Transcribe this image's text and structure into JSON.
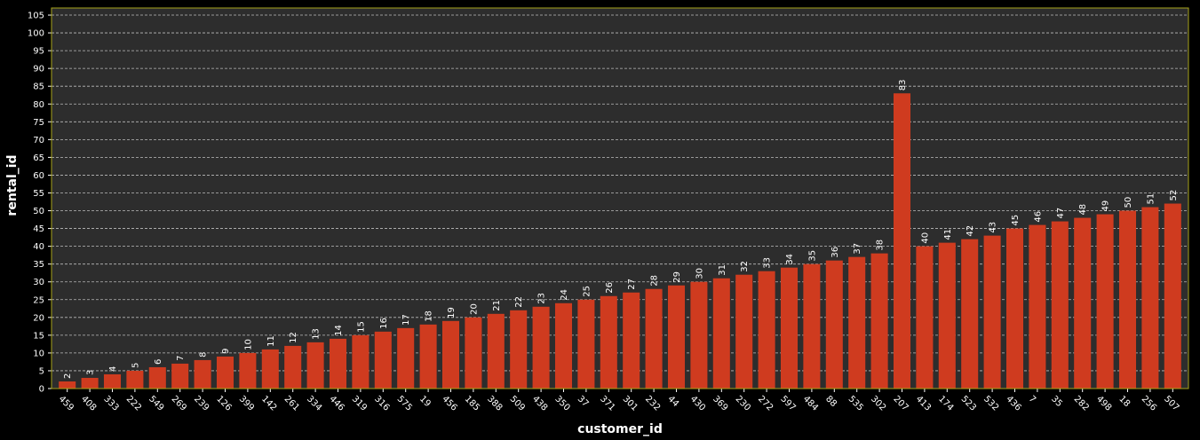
{
  "chart_data": {
    "type": "bar",
    "title": "",
    "xlabel": "customer_id",
    "ylabel": "rental_id",
    "ylim": [
      0,
      107
    ],
    "yticks": [
      0,
      5,
      10,
      15,
      20,
      25,
      30,
      35,
      40,
      45,
      50,
      55,
      60,
      65,
      70,
      75,
      80,
      85,
      90,
      95,
      100,
      105
    ],
    "grid": true,
    "legend": "none",
    "categories": [
      "459",
      "408",
      "333",
      "222",
      "549",
      "269",
      "239",
      "126",
      "399",
      "142",
      "261",
      "334",
      "446",
      "319",
      "316",
      "575",
      "19",
      "456",
      "185",
      "388",
      "509",
      "438",
      "350",
      "37",
      "371",
      "301",
      "232",
      "44",
      "430",
      "369",
      "230",
      "272",
      "597",
      "484",
      "88",
      "535",
      "302",
      "207",
      "413",
      "174",
      "523",
      "532",
      "436",
      "7",
      "35",
      "282",
      "498",
      "18",
      "256",
      "507"
    ],
    "values": [
      2,
      3,
      4,
      5,
      6,
      7,
      8,
      9,
      10,
      11,
      12,
      13,
      14,
      15,
      16,
      17,
      18,
      19,
      20,
      21,
      22,
      23,
      24,
      25,
      26,
      27,
      28,
      29,
      30,
      31,
      32,
      33,
      34,
      35,
      36,
      37,
      38,
      83,
      40,
      41,
      42,
      43,
      45,
      46,
      47,
      48,
      49,
      50,
      51,
      52
    ],
    "colors": {
      "bar": "#cf3b1f",
      "plot_background": "#2d2d2d",
      "page_background": "#000000",
      "frame": "#a8a31a",
      "grid": "#bdbdbd",
      "text": "#ffffff"
    }
  }
}
